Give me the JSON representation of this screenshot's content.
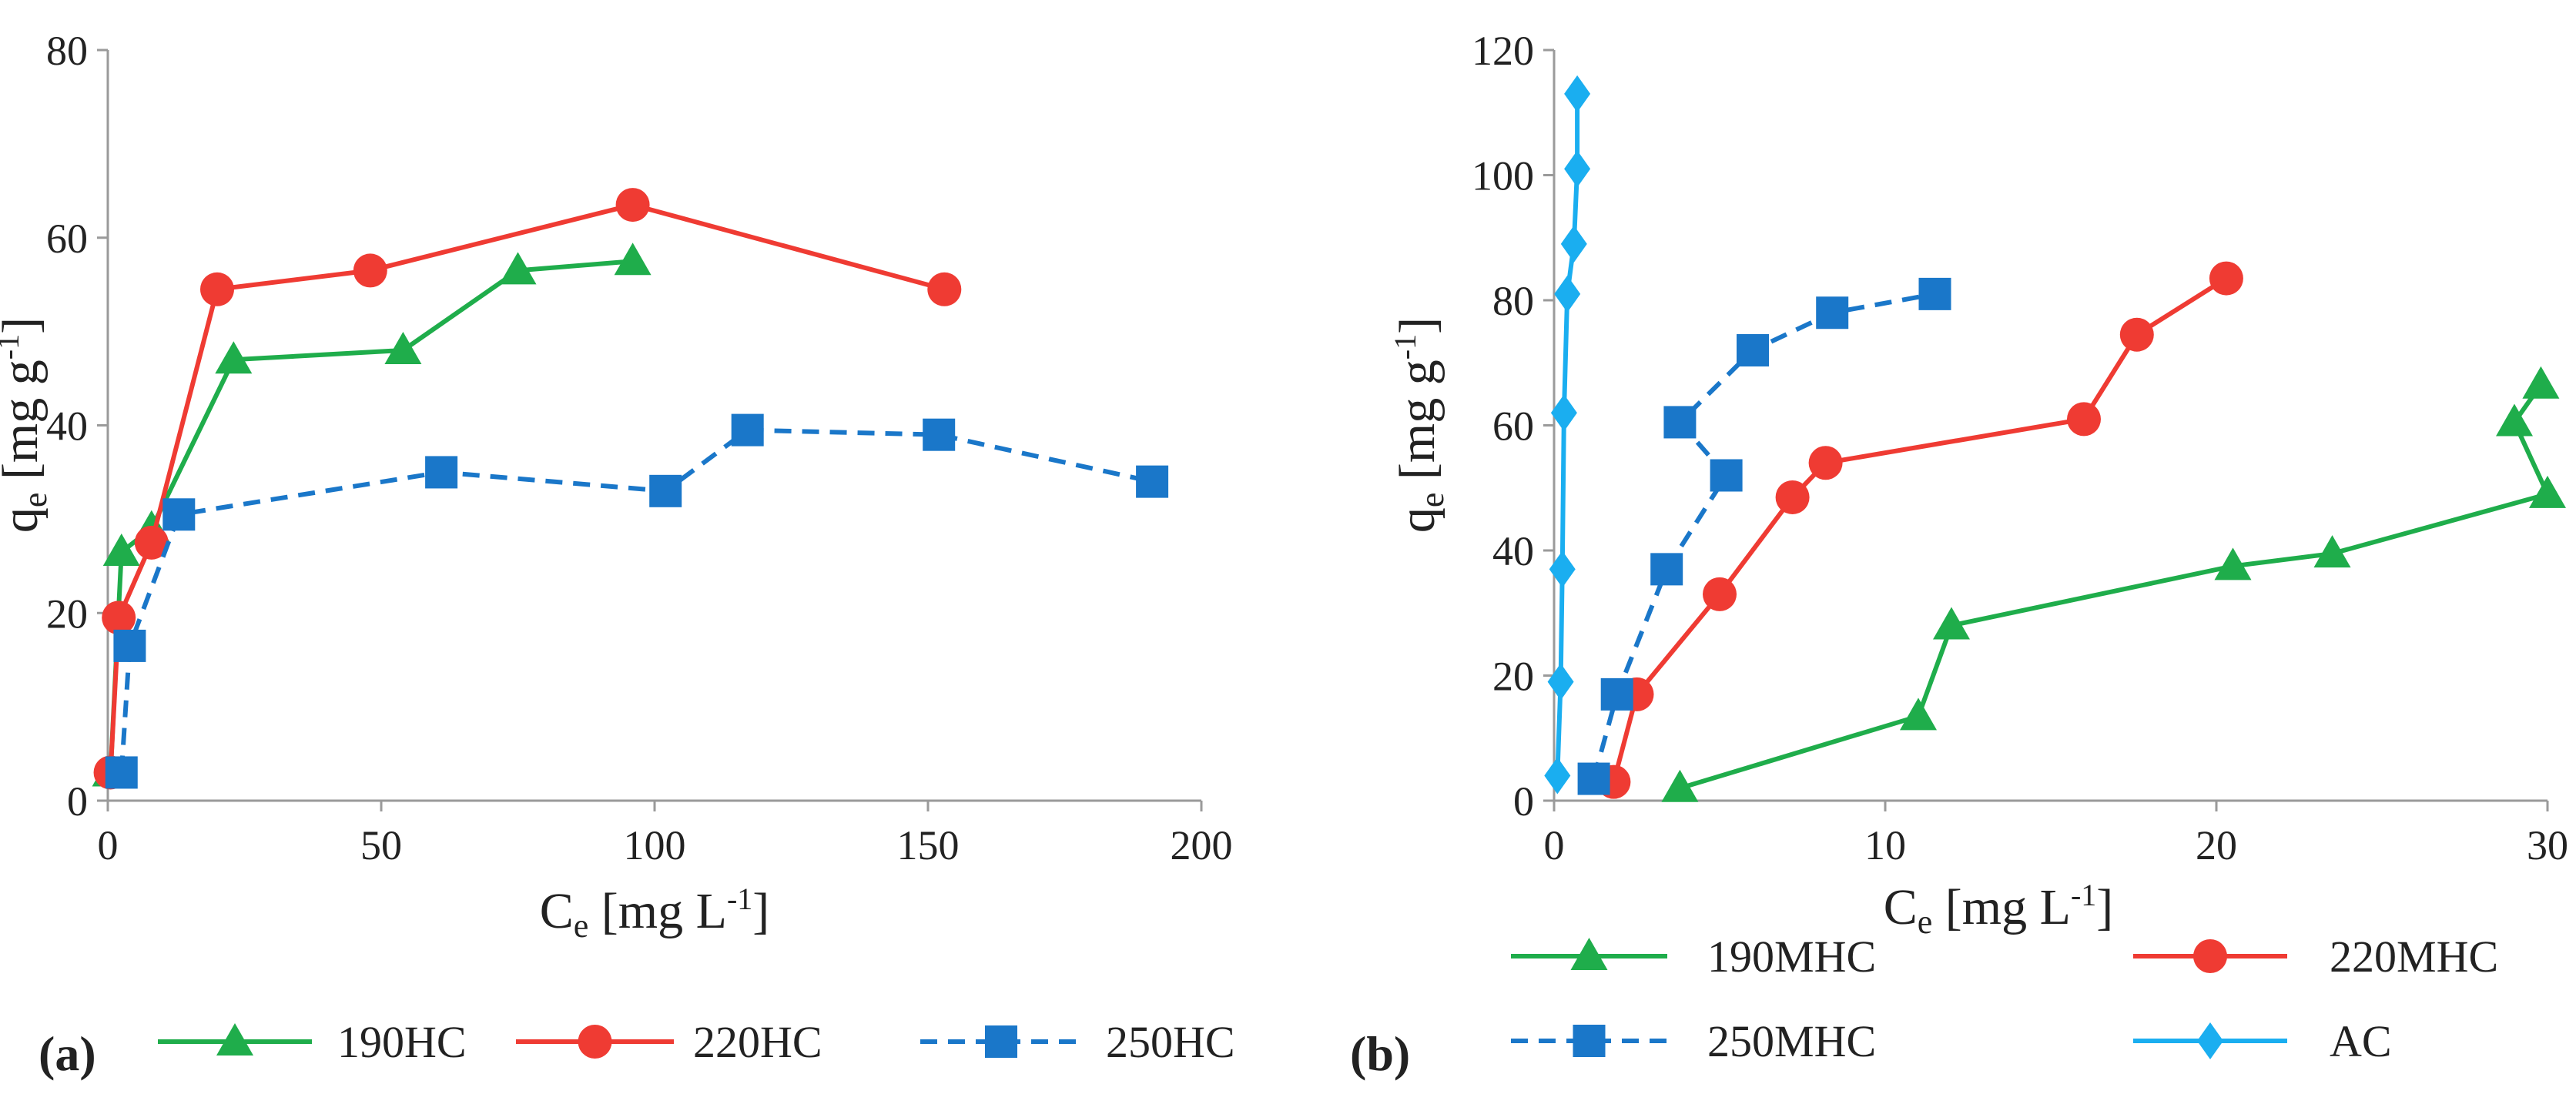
{
  "chart_data": [
    {
      "panel": "(a)",
      "type": "line",
      "xlabel": {
        "main": "C",
        "sub": "e",
        "unit_pre": " [mg L",
        "sup": "-1",
        "unit_post": "]"
      },
      "ylabel": {
        "main": "q",
        "sub": "e",
        "unit_pre": " [mg g",
        "sup": "-1",
        "unit_post": "]"
      },
      "xlim": [
        0,
        200
      ],
      "ylim": [
        0,
        80
      ],
      "xticks": [
        0,
        50,
        100,
        150,
        200
      ],
      "yticks": [
        0,
        20,
        40,
        60,
        80
      ],
      "series": [
        {
          "name": "190HC",
          "color": "#1fad4b",
          "marker": "triangle",
          "dash": false,
          "points": [
            [
              0.5,
              3
            ],
            [
              2.5,
              26.5
            ],
            [
              8,
              29
            ],
            [
              23,
              47
            ],
            [
              54,
              48
            ],
            [
              75,
              56.5
            ],
            [
              96,
              57.5
            ]
          ]
        },
        {
          "name": "220HC",
          "color": "#ef3b33",
          "marker": "circle",
          "dash": false,
          "points": [
            [
              0.5,
              3
            ],
            [
              2,
              19.5
            ],
            [
              8,
              27.5
            ],
            [
              20,
              54.5
            ],
            [
              48,
              56.5
            ],
            [
              96,
              63.5
            ],
            [
              153,
              54.5
            ]
          ]
        },
        {
          "name": "250HC",
          "color": "#1a77c9",
          "marker": "square",
          "dash": true,
          "points": [
            [
              2.5,
              3
            ],
            [
              4,
              16.5
            ],
            [
              13,
              30.5
            ],
            [
              61,
              35
            ],
            [
              102,
              33
            ],
            [
              117,
              39.5
            ],
            [
              152,
              39
            ],
            [
              191,
              34
            ]
          ]
        }
      ]
    },
    {
      "panel": "(b)",
      "type": "line",
      "xlabel": {
        "main": "C",
        "sub": "e",
        "unit_pre": " [mg L",
        "sup": "-1",
        "unit_post": "]"
      },
      "ylabel": {
        "main": "q",
        "sub": "e",
        "unit_pre": " [mg g",
        "sup": "-1",
        "unit_post": "]"
      },
      "xlim": [
        0,
        30
      ],
      "ylim": [
        0,
        120
      ],
      "xticks": [
        0,
        10,
        20,
        30
      ],
      "yticks": [
        0,
        20,
        40,
        60,
        80,
        100,
        120
      ],
      "series": [
        {
          "name": "190MHC",
          "color": "#1fad4b",
          "marker": "triangle",
          "dash": false,
          "points": [
            [
              3.8,
              2
            ],
            [
              11,
              13.5
            ],
            [
              12,
              28
            ],
            [
              20.5,
              37.5
            ],
            [
              23.5,
              39.5
            ],
            [
              30,
              49
            ],
            [
              29,
              60.5
            ],
            [
              29.8,
              66.5
            ]
          ]
        },
        {
          "name": "220MHC",
          "color": "#ef3b33",
          "marker": "circle",
          "dash": false,
          "points": [
            [
              1.8,
              3
            ],
            [
              2.5,
              17
            ],
            [
              5,
              33
            ],
            [
              7.2,
              48.5
            ],
            [
              8.2,
              54
            ],
            [
              16,
              61
            ],
            [
              17.6,
              74.5
            ],
            [
              20.3,
              83.5
            ]
          ]
        },
        {
          "name": "250MHC",
          "color": "#1a77c9",
          "marker": "square",
          "dash": true,
          "points": [
            [
              1.2,
              3.5
            ],
            [
              1.9,
              17
            ],
            [
              3.4,
              37
            ],
            [
              5.2,
              52
            ],
            [
              3.8,
              60.5
            ],
            [
              6,
              72
            ],
            [
              8.4,
              78
            ],
            [
              11.5,
              81
            ]
          ]
        },
        {
          "name": "AC",
          "color": "#1aaef0",
          "marker": "diamond",
          "dash": false,
          "points": [
            [
              0.1,
              4
            ],
            [
              0.2,
              19
            ],
            [
              0.25,
              37
            ],
            [
              0.3,
              62
            ],
            [
              0.4,
              81
            ],
            [
              0.6,
              89
            ],
            [
              0.7,
              101
            ],
            [
              0.7,
              113
            ]
          ]
        }
      ]
    }
  ]
}
